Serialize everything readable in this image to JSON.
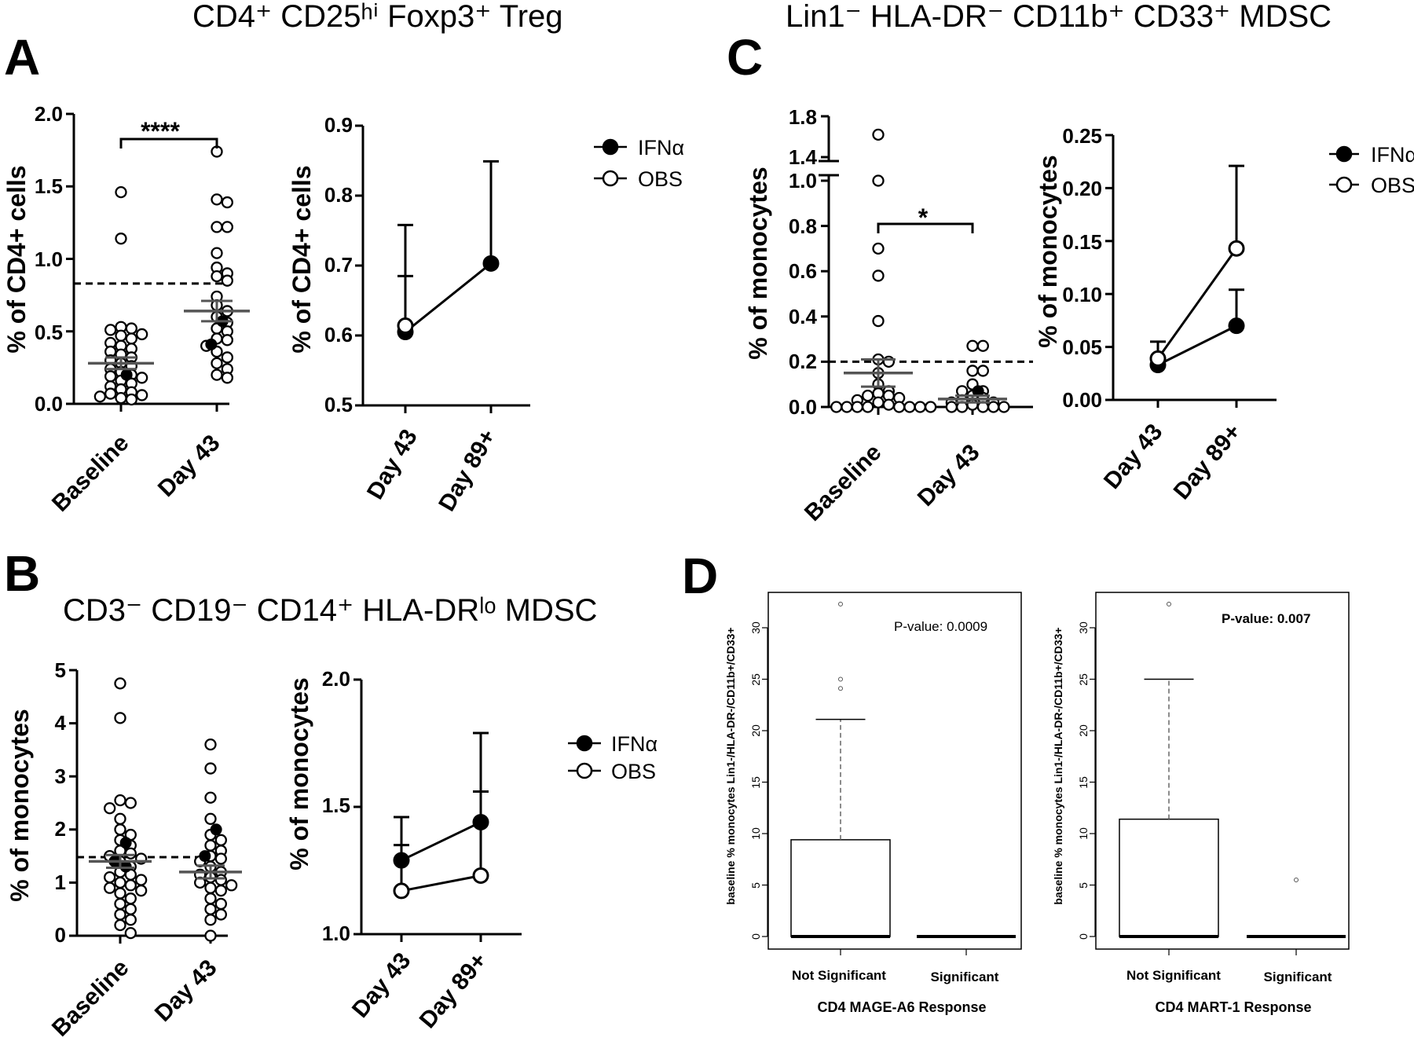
{
  "panels": {
    "A": {
      "letter": "A",
      "title": "CD4⁺ CD25ʰⁱ Foxp3⁺ Treg",
      "scatter": {
        "ylabel": "% of CD4+ cells",
        "yticks": [
          "0.0",
          "0.5",
          "1.0",
          "1.5",
          "2.0"
        ],
        "categories": [
          "Baseline",
          "Day 43"
        ],
        "significance": "****",
        "threshold": 0.83
      },
      "line": {
        "ylabel": "% of CD4+ cells",
        "yticks": [
          "0.5",
          "0.6",
          "0.7",
          "0.8",
          "0.9"
        ],
        "categories": [
          "Day 43",
          "Day 89+"
        ]
      },
      "legend": [
        "IFNα",
        "OBS"
      ]
    },
    "B": {
      "letter": "B",
      "title": "CD3⁻ CD19⁻ CD14⁺ HLA-DRˡᵒ MDSC",
      "scatter": {
        "ylabel": "% of monocytes",
        "yticks": [
          "0",
          "1",
          "2",
          "3",
          "4",
          "5"
        ],
        "categories": [
          "Baseline",
          "Day 43"
        ],
        "threshold": 1.48
      },
      "line": {
        "ylabel": "% of monocytes",
        "yticks": [
          "1.0",
          "1.5",
          "2.0"
        ],
        "categories": [
          "Day 43",
          "Day 89+"
        ]
      },
      "legend": [
        "IFNα",
        "OBS"
      ]
    },
    "C": {
      "letter": "C",
      "title": "Lin1⁻ HLA-DR⁻ CD11b⁺ CD33⁺ MDSC",
      "scatter": {
        "ylabel": "% of monocytes",
        "yticks": [
          "0.0",
          "0.2",
          "0.4",
          "0.6",
          "0.8",
          "1.0",
          "1.4",
          "1.8"
        ],
        "categories": [
          "Baseline",
          "Day 43"
        ],
        "significance": "*",
        "threshold": 0.2
      },
      "line": {
        "ylabel": "% of monocytes",
        "yticks": [
          "0.00",
          "0.05",
          "0.10",
          "0.15",
          "0.20",
          "0.25"
        ],
        "categories": [
          "Day 43",
          "Day 89+"
        ]
      },
      "legend": [
        "IFNα",
        "OBS"
      ]
    },
    "D": {
      "letter": "D",
      "ylabel": "baseline % monocytes Lin1-/HLA-DR-/CD11b+/CD33+",
      "yticks": [
        "0",
        "5",
        "10",
        "15",
        "20",
        "25",
        "30"
      ],
      "categories": [
        "Not Significant",
        "Significant"
      ],
      "left": {
        "xlabel": "CD4 MAGE-A6 Response",
        "pvalue": "P-value: 0.0009"
      },
      "right": {
        "xlabel": "CD4 MART-1 Response",
        "pvalue": "P-value: 0.007"
      }
    }
  },
  "chart_data": [
    {
      "type": "scatter",
      "panel": "A-left",
      "ylabel": "% of CD4+ cells",
      "ylim": [
        0,
        2.0
      ],
      "categories": [
        "Baseline",
        "Day 43"
      ],
      "mean": [
        0.28,
        0.64
      ],
      "sem": [
        0.04,
        0.07
      ],
      "threshold": 0.83,
      "significance": "****",
      "points": [
        {
          "cat": 0,
          "values": [
            1.46,
            1.14,
            0.53,
            0.52,
            0.51,
            0.48,
            0.47,
            0.45,
            0.42,
            0.4,
            0.38,
            0.36,
            0.34,
            0.32,
            0.3,
            0.28,
            0.26,
            0.24,
            0.22,
            0.2,
            0.19,
            0.18,
            0.16,
            0.14,
            0.12,
            0.1,
            0.08,
            0.07,
            0.06,
            0.05,
            0.04,
            0.03
          ],
          "filled": [
            0.2
          ]
        },
        {
          "cat": 1,
          "values": [
            1.74,
            1.41,
            1.39,
            1.22,
            1.22,
            1.04,
            0.94,
            0.9,
            0.88,
            0.85,
            0.74,
            0.68,
            0.64,
            0.6,
            0.56,
            0.52,
            0.5,
            0.45,
            0.44,
            0.4,
            0.36,
            0.32,
            0.28,
            0.24,
            0.2,
            0.18
          ],
          "filled": [
            0.57,
            0.41
          ]
        }
      ]
    },
    {
      "type": "line",
      "panel": "A-right",
      "ylabel": "% of CD4+ cells",
      "ylim": [
        0.5,
        0.9
      ],
      "categories": [
        "Day 43",
        "Day 89+"
      ],
      "series": [
        {
          "name": "IFNα",
          "values": [
            0.605,
            0.703
          ],
          "err_upper": [
            0.758,
            0.849
          ],
          "err_mid": [
            0.685,
            null
          ]
        },
        {
          "name": "OBS",
          "values": [
            0.614,
            null
          ]
        }
      ]
    },
    {
      "type": "scatter",
      "panel": "B-left",
      "ylabel": "% of monocytes",
      "ylim": [
        0,
        5
      ],
      "categories": [
        "Baseline",
        "Day 43"
      ],
      "mean": [
        1.4,
        1.2
      ],
      "sem": [
        0.12,
        0.12
      ],
      "threshold": 1.48,
      "points": [
        {
          "cat": 0,
          "values": [
            4.75,
            4.1,
            2.55,
            2.5,
            2.4,
            2.2,
            2.0,
            1.9,
            1.8,
            1.7,
            1.6,
            1.55,
            1.5,
            1.45,
            1.4,
            1.3,
            1.2,
            1.15,
            1.1,
            1.05,
            1.0,
            0.95,
            0.9,
            0.85,
            0.8,
            0.7,
            0.6,
            0.5,
            0.4,
            0.3,
            0.2,
            0.05
          ],
          "filled": [
            1.75,
            1.4,
            1.3
          ]
        },
        {
          "cat": 1,
          "values": [
            3.6,
            3.15,
            2.6,
            2.2,
            1.9,
            1.8,
            1.7,
            1.6,
            1.5,
            1.45,
            1.4,
            1.3,
            1.2,
            1.15,
            1.1,
            1.05,
            1.0,
            0.95,
            0.9,
            0.85,
            0.7,
            0.6,
            0.5,
            0.4,
            0.3,
            0.0
          ],
          "filled": [
            2.0,
            1.5
          ]
        }
      ]
    },
    {
      "type": "line",
      "panel": "B-right",
      "ylabel": "% of monocytes",
      "ylim": [
        1.0,
        2.0
      ],
      "categories": [
        "Day 43",
        "Day 89+"
      ],
      "series": [
        {
          "name": "IFNα",
          "values": [
            1.29,
            1.44
          ],
          "err_upper": [
            1.46,
            1.79
          ]
        },
        {
          "name": "OBS",
          "values": [
            1.17,
            1.23
          ],
          "err_upper": [
            1.35,
            1.56
          ]
        }
      ]
    },
    {
      "type": "scatter",
      "panel": "C-left",
      "ylabel": "% of monocytes",
      "ylim": [
        0,
        1.8
      ],
      "axis_break": [
        1.0,
        1.4
      ],
      "categories": [
        "Baseline",
        "Day 43"
      ],
      "mean": [
        0.15,
        0.035
      ],
      "sem": [
        0.06,
        0.015
      ],
      "threshold": 0.2,
      "significance": "*",
      "points": [
        {
          "cat": 0,
          "values": [
            1.62,
            1.0,
            0.7,
            0.58,
            0.38,
            0.21,
            0.2,
            0.15,
            0.1,
            0.07,
            0.06,
            0.05,
            0.05,
            0.04,
            0.03,
            0.02,
            0.01,
            0.0,
            0.0,
            0.0,
            0.0,
            0.0,
            0.0,
            0.0,
            0.0
          ],
          "filled": []
        },
        {
          "cat": 1,
          "values": [
            0.27,
            0.27,
            0.16,
            0.16,
            0.1,
            0.07,
            0.07,
            0.05,
            0.04,
            0.03,
            0.02,
            0.02,
            0.01,
            0.0,
            0.0,
            0.0,
            0.0,
            0.0
          ],
          "filled": [
            0.07
          ]
        }
      ]
    },
    {
      "type": "line",
      "panel": "C-right",
      "ylabel": "% of monocytes",
      "ylim": [
        0,
        0.25
      ],
      "categories": [
        "Day 43",
        "Day 89+"
      ],
      "series": [
        {
          "name": "IFNα",
          "values": [
            0.033,
            0.07
          ],
          "err_upper": [
            0.055,
            0.104
          ]
        },
        {
          "name": "OBS",
          "values": [
            0.039,
            0.143
          ],
          "err_upper": [
            null,
            0.221
          ]
        }
      ]
    },
    {
      "type": "box",
      "panel": "D-left",
      "xlabel": "CD4 MAGE-A6 Response",
      "ylabel": "baseline % monocytes Lin1-/HLA-DR-/CD11b+/CD33+",
      "ylim": [
        -1,
        33
      ],
      "categories": [
        "Not Significant",
        "Significant"
      ],
      "boxes": [
        {
          "q1": 0,
          "median": 0,
          "q3": 9.4,
          "whisker_low": 0,
          "whisker_high": 21.1,
          "outliers": [
            24.1,
            25.0,
            32.3
          ]
        },
        {
          "q1": 0,
          "median": 0,
          "q3": 0,
          "whisker_low": 0,
          "whisker_high": 0,
          "outliers": []
        }
      ],
      "annotation": "P-value: 0.0009"
    },
    {
      "type": "box",
      "panel": "D-right",
      "xlabel": "CD4 MART-1 Response",
      "ylabel": "baseline % monocytes Lin1-/HLA-DR-/CD11b+/CD33+",
      "ylim": [
        -1,
        33
      ],
      "categories": [
        "Not Significant",
        "Significant"
      ],
      "boxes": [
        {
          "q1": 0,
          "median": 0,
          "q3": 11.4,
          "whisker_low": 0,
          "whisker_high": 25.0,
          "outliers": [
            32.3
          ]
        },
        {
          "q1": 0,
          "median": 0,
          "q3": 0,
          "whisker_low": 0,
          "whisker_high": 0,
          "outliers": [
            5.5
          ]
        }
      ],
      "annotation": "P-value: 0.007"
    }
  ]
}
